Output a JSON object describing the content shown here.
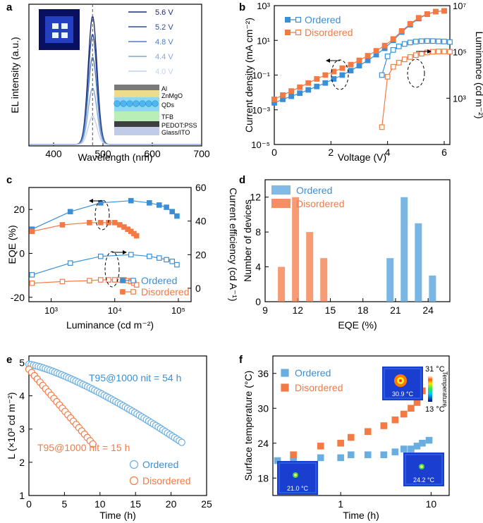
{
  "colors": {
    "ordered": "#3a8fd6",
    "ordered_light": "#6aaee0",
    "disordered": "#f47a45",
    "spectra": [
      "#1d2b6e",
      "#2b4c9b",
      "#4f7bc0",
      "#86a8d8",
      "#c2d3ee"
    ],
    "layers": [
      "#7a7a7a",
      "#ecdc8c",
      "#8fd6f0",
      "#b9efb6",
      "#3e3e3e",
      "#c2cbe6"
    ]
  },
  "chart_data": [
    {
      "panel": "a",
      "type": "line",
      "xlabel": "Wavelength (nm)",
      "ylabel": "EL intensity (a.u.)",
      "xlim": [
        350,
        700
      ],
      "xticks": [
        400,
        500,
        600,
        700
      ],
      "peak_nm": 479,
      "fwhm_nm": 21,
      "series": [
        {
          "name": "5.6 V",
          "amplitude": 1.0
        },
        {
          "name": "5.2 V",
          "amplitude": 0.86
        },
        {
          "name": "4.8 V",
          "amplitude": 0.68
        },
        {
          "name": "4.4 V",
          "amplitude": 0.44
        },
        {
          "name": "4.0 V",
          "amplitude": 0.22
        }
      ],
      "inset_layers": [
        "Al",
        "ZnMgO",
        "QDs",
        "TFB",
        "PEDOT:PSS",
        "Glass/ITO"
      ]
    },
    {
      "panel": "b",
      "type": "line",
      "xlabel": "Voltage (V)",
      "ylabel": "Current density (mA cm⁻²)",
      "y2label": "Luminance (cd m⁻²)",
      "xlim": [
        0,
        6.2
      ],
      "xticks": [
        0,
        2,
        4,
        6
      ],
      "ylim_log": [
        -5,
        3
      ],
      "y2lim_log": [
        -1,
        7
      ],
      "yticks": [
        "10⁻⁵",
        "10⁻³",
        "10⁻¹",
        "10¹",
        "10³"
      ],
      "y2ticks": [
        "10³",
        "10⁵",
        "10⁷"
      ],
      "legend": [
        "Ordered",
        "Disordered"
      ],
      "series": [
        {
          "name": "Ordered J",
          "x": [
            0.0,
            0.3,
            0.6,
            0.9,
            1.2,
            1.5,
            1.8,
            2.1,
            2.4,
            2.7,
            3.0,
            3.3,
            3.6,
            3.9,
            4.2,
            4.5,
            4.8,
            5.1,
            5.4,
            5.7,
            6.0
          ],
          "y": [
            0.0025,
            0.004,
            0.006,
            0.009,
            0.014,
            0.022,
            0.035,
            0.06,
            0.1,
            0.18,
            0.35,
            0.7,
            1.5,
            3.5,
            10,
            30,
            80,
            180,
            320,
            450,
            500
          ]
        },
        {
          "name": "Disordered J",
          "x": [
            0.0,
            0.3,
            0.6,
            0.9,
            1.2,
            1.5,
            1.8,
            2.1,
            2.4,
            2.7,
            3.0,
            3.3,
            3.6,
            3.9,
            4.2,
            4.5,
            4.8,
            5.1,
            5.4,
            5.7,
            6.0
          ],
          "y": [
            0.004,
            0.007,
            0.012,
            0.02,
            0.035,
            0.06,
            0.1,
            0.16,
            0.25,
            0.4,
            0.7,
            1.3,
            2.5,
            5,
            12,
            35,
            90,
            200,
            330,
            450,
            500
          ]
        },
        {
          "name": "Ordered L",
          "x": [
            3.8,
            4.0,
            4.2,
            4.4,
            4.6,
            4.8,
            5.0,
            5.2,
            5.4,
            5.6,
            5.8,
            6.0,
            6.2
          ],
          "y": [
            1000,
            12000,
            28000,
            45000,
            62000,
            75000,
            85000,
            90000,
            92000,
            91000,
            88000,
            86000,
            80000
          ]
        },
        {
          "name": "Disordered L",
          "x": [
            3.8,
            4.0,
            4.2,
            4.4,
            4.6,
            4.8,
            5.0,
            5.2,
            5.4,
            5.6,
            5.8,
            6.0,
            6.2
          ],
          "y": [
            1,
            800,
            3000,
            5200,
            8000,
            11000,
            14000,
            17000,
            20000,
            22000,
            23000,
            23000,
            22000
          ]
        }
      ]
    },
    {
      "panel": "c",
      "type": "line",
      "xlabel": "Luminance (cd m⁻²)",
      "ylabel": "EQE (%)",
      "y2label": "Current efficiency (cd A⁻¹)",
      "xlim_log": [
        2.65,
        5.2
      ],
      "xticks": [
        "10³",
        "10⁴",
        "10⁵"
      ],
      "ylim": [
        -22,
        30
      ],
      "yticks": [
        -20,
        0,
        20
      ],
      "y2lim": [
        -8,
        60
      ],
      "y2ticks": [
        0,
        20,
        40,
        60
      ],
      "legend": [
        "Ordered",
        "Disordered"
      ],
      "series": [
        {
          "name": "Ordered EQE",
          "x": [
            500,
            2000,
            6000,
            18000,
            35000,
            50000,
            65000,
            80000,
            95000
          ],
          "y": [
            11,
            19,
            23,
            24,
            23,
            22,
            21,
            19,
            17
          ]
        },
        {
          "name": "Disordered EQE",
          "x": [
            500,
            1500,
            4000,
            6000,
            8000,
            10000,
            12000,
            14000,
            16000,
            18000,
            20000,
            22000
          ],
          "y": [
            10,
            13,
            14,
            14,
            14,
            14,
            13,
            12,
            11,
            10,
            9,
            8
          ]
        },
        {
          "name": "Ordered CE",
          "x": [
            500,
            2000,
            6000,
            18000,
            35000,
            50000,
            65000,
            80000,
            95000
          ],
          "y": [
            8,
            15,
            19,
            20,
            19,
            18,
            17,
            16,
            14
          ]
        },
        {
          "name": "Disordered CE",
          "x": [
            500,
            1500,
            4000,
            6000,
            8000,
            10000,
            12000,
            14000,
            16000,
            18000,
            20000,
            22000
          ],
          "y": [
            3,
            4,
            4.5,
            5,
            5,
            5,
            5,
            5,
            4.5,
            4,
            3,
            2
          ]
        }
      ]
    },
    {
      "panel": "d",
      "type": "bar",
      "xlabel": "EQE (%)",
      "ylabel": "Number of devices",
      "xlim": [
        9,
        26
      ],
      "xticks": [
        9,
        12,
        15,
        18,
        21,
        24
      ],
      "ylim": [
        0,
        14
      ],
      "yticks": [
        0,
        4,
        8,
        12
      ],
      "legend": [
        "Ordered",
        "Disordered"
      ],
      "series": [
        {
          "name": "Ordered",
          "x": [
            20.5,
            21.8,
            23.1,
            24.4
          ],
          "values": [
            5,
            12,
            9,
            3
          ]
        },
        {
          "name": "Disordered",
          "x": [
            10.5,
            11.8,
            13.1,
            14.4
          ],
          "values": [
            4,
            12,
            8,
            5
          ]
        }
      ]
    },
    {
      "panel": "e",
      "type": "scatter",
      "xlabel": "Time (h)",
      "ylabel": "L (×10³ cd m⁻²)",
      "xlim": [
        0,
        25
      ],
      "xticks": [
        0,
        5,
        10,
        15,
        20,
        25
      ],
      "ylim": [
        1,
        5.2
      ],
      "yticks": [
        1,
        2,
        3,
        4,
        5
      ],
      "legend": [
        "Ordered",
        "Disordered"
      ],
      "annotations": [
        "T95@1000 nit = 54 h",
        "T95@1000 nit = 15 h"
      ],
      "series": [
        {
          "name": "Ordered",
          "t_end": 21.5,
          "y0": 4.95,
          "y_end": 2.6,
          "points": 66
        },
        {
          "name": "Disordered",
          "t_end": 9.0,
          "y0": 4.8,
          "y_end": 2.55,
          "points": 24
        }
      ]
    },
    {
      "panel": "f",
      "type": "scatter",
      "xlabel": "Time (h)",
      "ylabel": "Surface temperature (°C)",
      "xlim_log": [
        -0.75,
        1.2
      ],
      "xticks": [
        "1",
        "10"
      ],
      "ylim": [
        15,
        39
      ],
      "yticks": [
        18,
        24,
        30,
        36
      ],
      "legend": [
        "Ordered",
        "Disordered"
      ],
      "colorbar": {
        "max": "31 °C",
        "min": "13 °C",
        "label": "Temperature"
      },
      "thermal_labels": [
        "30.9 °C",
        "21.0 °C",
        "24.2 °C"
      ],
      "series": [
        {
          "name": "Ordered",
          "x": [
            0.2,
            0.3,
            0.6,
            1,
            1.3,
            2,
            3,
            4,
            5,
            6,
            7,
            8,
            9.5
          ],
          "y": [
            21,
            21,
            21.5,
            21.5,
            22,
            22,
            22,
            22.5,
            23,
            23,
            23.5,
            24,
            24.5
          ]
        },
        {
          "name": "Disordered",
          "x": [
            0.3,
            0.6,
            1,
            1.3,
            2,
            3,
            4,
            5,
            6,
            7,
            8
          ],
          "y": [
            22,
            23.5,
            24,
            25,
            26,
            27,
            28,
            29,
            30,
            31,
            33
          ]
        }
      ]
    }
  ]
}
